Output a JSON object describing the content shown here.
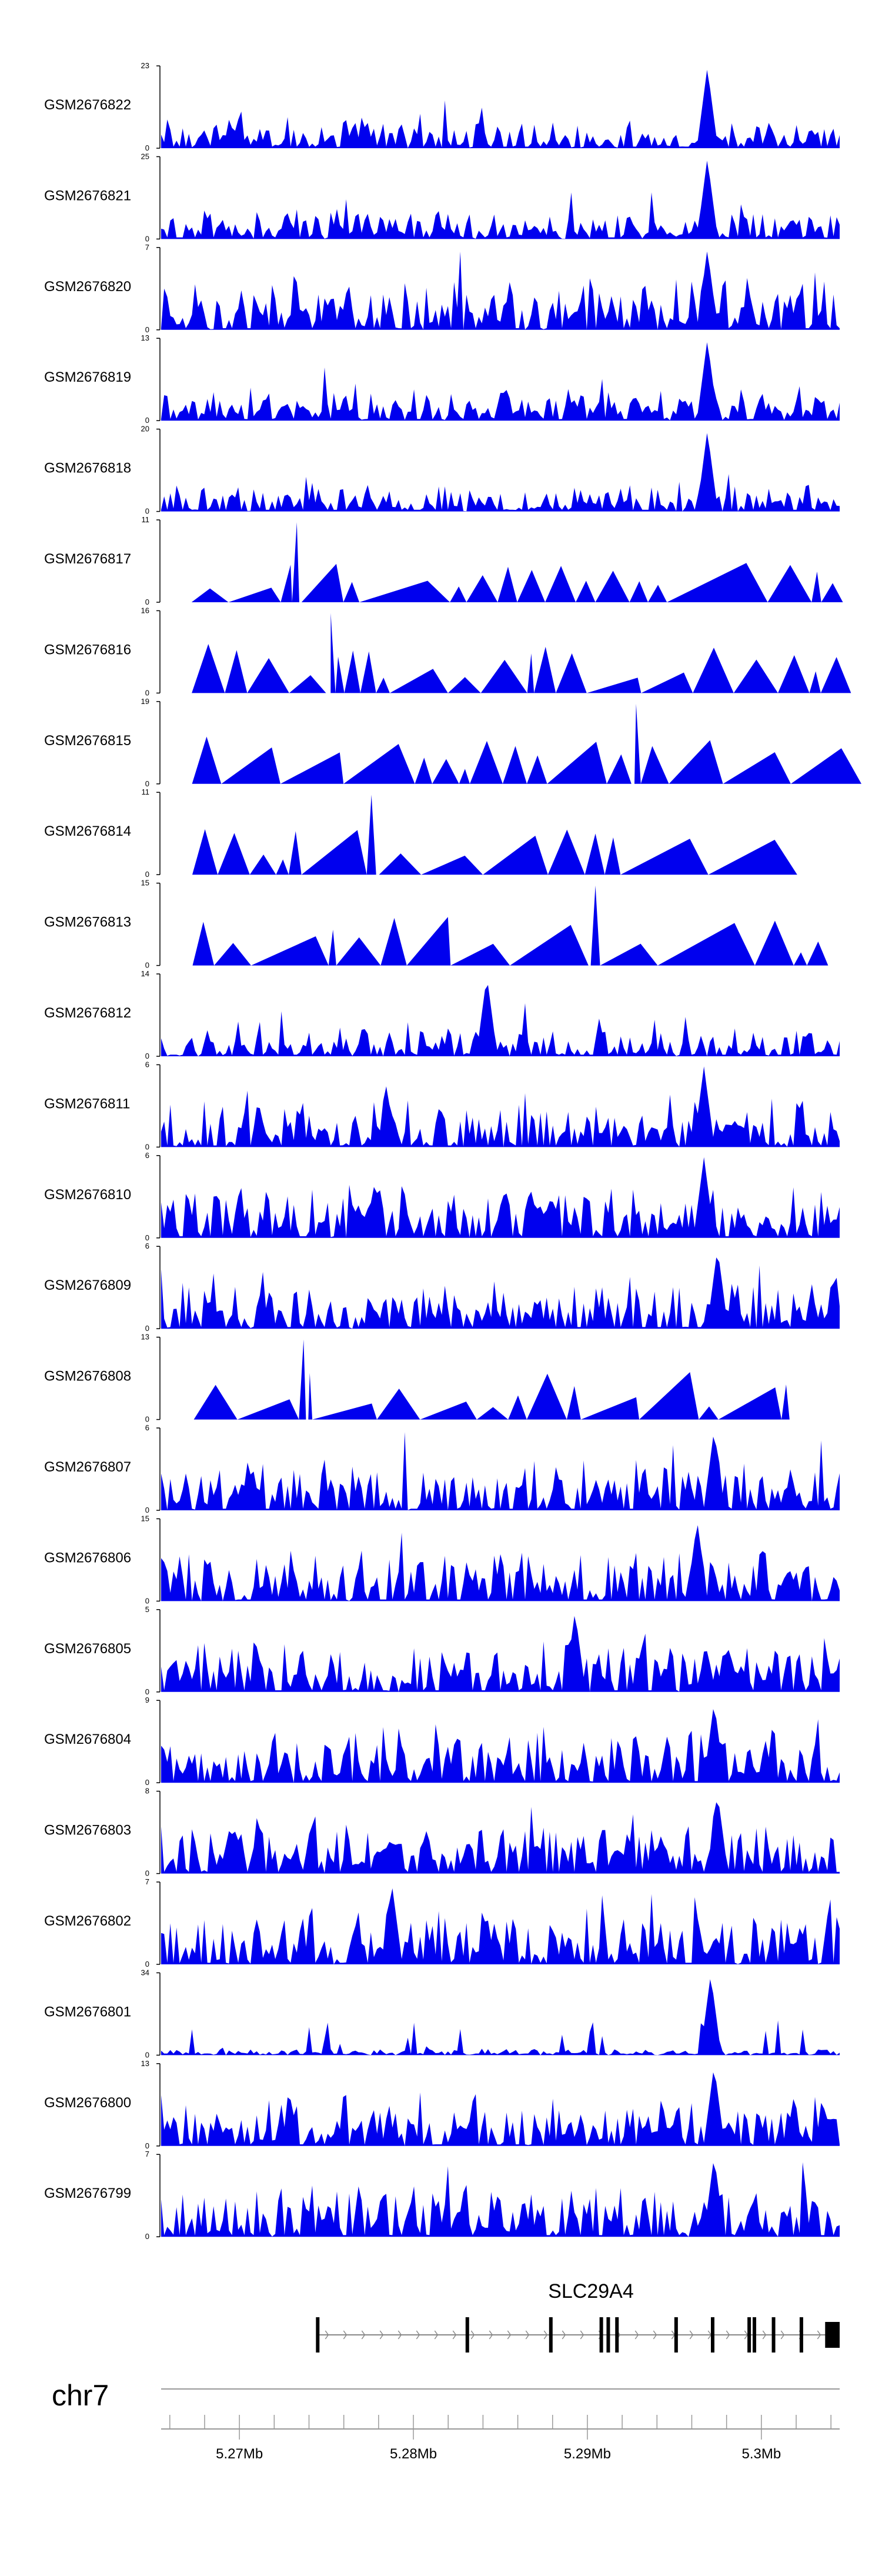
{
  "chart_data": {
    "type": "area",
    "title": "",
    "chromosome": "chr7",
    "region_mb": [
      5.2655,
      5.3045
    ],
    "colors": {
      "signal": "#0000ee",
      "axis": "#000000",
      "gene": "#000000",
      "intron": "#888888"
    },
    "x_ticks": [
      "5.27Mb",
      "5.28Mb",
      "5.29Mb",
      "5.3Mb"
    ],
    "x_tick_values": [
      5.27,
      5.28,
      5.29,
      5.3
    ],
    "gene": {
      "name": "SLC29A4",
      "start_mb": 5.2745,
      "end_mb": 5.3045,
      "strand": "+",
      "exons_mb": [
        5.2745,
        5.2831,
        5.2879,
        5.2908,
        5.2912,
        5.2917,
        5.2951,
        5.2972,
        5.2993,
        5.2996,
        5.3007,
        5.3023,
        5.3038
      ]
    },
    "tracks": [
      {
        "name": "GSM2676822",
        "ymax": 23,
        "peak": 0.805,
        "style": "mixed",
        "seed": 11
      },
      {
        "name": "GSM2676821",
        "ymax": 25,
        "peak": 0.805,
        "style": "mixed",
        "seed": 12
      },
      {
        "name": "GSM2676820",
        "ymax": 7,
        "peak": 0.805,
        "style": "dense",
        "seed": 13
      },
      {
        "name": "GSM2676819",
        "ymax": 13,
        "peak": 0.805,
        "style": "mixed",
        "seed": 14
      },
      {
        "name": "GSM2676818",
        "ymax": 20,
        "peak": 0.805,
        "style": "mixed",
        "seed": 15
      },
      {
        "name": "GSM2676817",
        "ymax": 11,
        "peak": 0.2,
        "style": "sparse",
        "seed": 16
      },
      {
        "name": "GSM2676816",
        "ymax": 16,
        "peak": 0.25,
        "style": "sparse",
        "seed": 17
      },
      {
        "name": "GSM2676815",
        "ymax": 19,
        "peak": 0.7,
        "style": "sparse",
        "seed": 18
      },
      {
        "name": "GSM2676814",
        "ymax": 11,
        "peak": 0.31,
        "style": "sparse",
        "seed": 19
      },
      {
        "name": "GSM2676813",
        "ymax": 15,
        "peak": 0.64,
        "style": "sparse",
        "seed": 20
      },
      {
        "name": "GSM2676812",
        "ymax": 14,
        "peak": 0.48,
        "style": "mixed",
        "seed": 21
      },
      {
        "name": "GSM2676811",
        "ymax": 6,
        "peak": 0.8,
        "style": "dense",
        "seed": 22
      },
      {
        "name": "GSM2676810",
        "ymax": 6,
        "peak": 0.8,
        "style": "dense",
        "seed": 23
      },
      {
        "name": "GSM2676809",
        "ymax": 6,
        "peak": 0.82,
        "style": "dense",
        "seed": 24
      },
      {
        "name": "GSM2676808",
        "ymax": 13,
        "peak": 0.21,
        "style": "sparse",
        "seed": 25
      },
      {
        "name": "GSM2676807",
        "ymax": 6,
        "peak": 0.815,
        "style": "dense",
        "seed": 26
      },
      {
        "name": "GSM2676806",
        "ymax": 15,
        "peak": 0.79,
        "style": "dense",
        "seed": 27
      },
      {
        "name": "GSM2676805",
        "ymax": 5,
        "peak": 0.61,
        "style": "dense",
        "seed": 28
      },
      {
        "name": "GSM2676804",
        "ymax": 9,
        "peak": 0.815,
        "style": "dense",
        "seed": 29
      },
      {
        "name": "GSM2676803",
        "ymax": 8,
        "peak": 0.82,
        "style": "dense",
        "seed": 30
      },
      {
        "name": "GSM2676802",
        "ymax": 7,
        "peak": 0.34,
        "style": "dense",
        "seed": 31
      },
      {
        "name": "GSM2676801",
        "ymax": 34,
        "peak": 0.81,
        "style": "low",
        "seed": 32
      },
      {
        "name": "GSM2676800",
        "ymax": 13,
        "peak": 0.815,
        "style": "dense",
        "seed": 33
      },
      {
        "name": "GSM2676799",
        "ymax": 7,
        "peak": 0.815,
        "style": "dense",
        "seed": 34
      }
    ]
  }
}
